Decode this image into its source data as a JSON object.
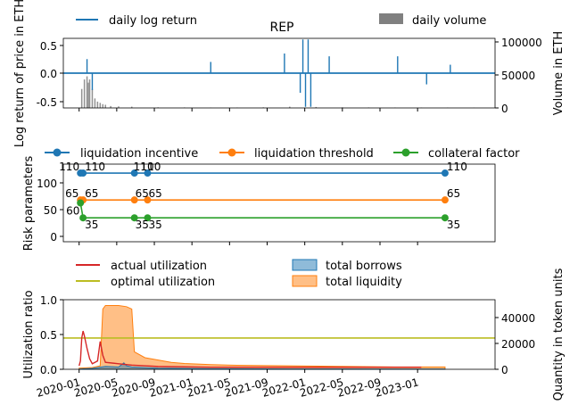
{
  "chart_data": [
    {
      "type": "line",
      "title": "REP",
      "ylabel": "Log return of price in ETH",
      "y2label": "Volume in ETH",
      "ylim": [
        -0.62,
        0.62
      ],
      "y2lim": [
        0,
        110000
      ],
      "yticks": [
        "0.5",
        "0.0",
        "-0.5"
      ],
      "y2ticks": [
        "100000",
        "50000",
        "0"
      ],
      "legend": [
        "daily log return",
        "daily volume"
      ],
      "colors": {
        "return": "#1f77b4",
        "volume": "#808080"
      },
      "volume_series": [
        [
          0.1,
          30000
        ],
        [
          0.2,
          45000
        ],
        [
          0.3,
          50000
        ],
        [
          0.35,
          40000
        ],
        [
          0.4,
          45000
        ],
        [
          0.5,
          30000
        ],
        [
          0.6,
          15000
        ],
        [
          0.7,
          10000
        ],
        [
          0.8,
          8000
        ],
        [
          0.9,
          6000
        ],
        [
          1.0,
          5000
        ],
        [
          1.2,
          3000
        ],
        [
          1.5,
          2500
        ],
        [
          2.0,
          2000
        ],
        [
          3.0,
          1000
        ],
        [
          4.0,
          800
        ],
        [
          5.0,
          500
        ],
        [
          6.0,
          600
        ],
        [
          7.0,
          1000
        ],
        [
          8.0,
          2000
        ],
        [
          9.0,
          1500
        ],
        [
          10.0,
          1000
        ],
        [
          11.0,
          800
        ],
        [
          12.0,
          700
        ],
        [
          13.0,
          600
        ],
        [
          14.0,
          500
        ],
        [
          15.0,
          400
        ]
      ],
      "return_spikes": [
        [
          0.3,
          0.25
        ],
        [
          0.5,
          -0.3
        ],
        [
          5.0,
          0.2
        ],
        [
          7.8,
          0.35
        ],
        [
          8.4,
          -0.35
        ],
        [
          8.5,
          0.6
        ],
        [
          8.6,
          -0.6
        ],
        [
          8.7,
          0.6
        ],
        [
          8.8,
          -0.6
        ],
        [
          9.5,
          0.3
        ],
        [
          12.1,
          0.3
        ],
        [
          13.2,
          -0.2
        ],
        [
          14.1,
          0.15
        ]
      ]
    },
    {
      "type": "line",
      "ylabel": "Risk parameters",
      "ylim": [
        -5,
        125
      ],
      "yticks": [
        "100",
        "50",
        "0"
      ],
      "legend": [
        "liquidation incentive",
        "liquidation threshold",
        "collateral factor"
      ],
      "colors": {
        "incentive": "#1f77b4",
        "threshold": "#ff7f0e",
        "collateral": "#2ca02c"
      },
      "x": [
        0.05,
        0.15,
        2.1,
        2.6,
        13.9
      ],
      "incentive": [
        110,
        110,
        110,
        110,
        110
      ],
      "threshold": [
        65,
        65,
        65,
        65,
        65
      ],
      "collateral": [
        60,
        35,
        35,
        35,
        35
      ],
      "point_labels": [
        {
          "text": "110",
          "x": 0.05,
          "y": 110,
          "dx": -24,
          "dy": -3
        },
        {
          "text": "110",
          "x": 0.15,
          "y": 110,
          "dx": 2,
          "dy": -3
        },
        {
          "text": "110",
          "x": 2.1,
          "y": 110,
          "dx": -1,
          "dy": -3
        },
        {
          "text": "110",
          "x": 2.6,
          "y": 110,
          "dx": -8,
          "dy": -3
        },
        {
          "text": "110",
          "x": 13.9,
          "y": 110,
          "dx": 2,
          "dy": -3
        },
        {
          "text": "65",
          "x": 0.05,
          "y": 65,
          "dx": -17,
          "dy": -3
        },
        {
          "text": "65",
          "x": 0.15,
          "y": 65,
          "dx": 2,
          "dy": -3
        },
        {
          "text": "65",
          "x": 2.1,
          "y": 65,
          "dx": 1,
          "dy": -3
        },
        {
          "text": "65",
          "x": 2.6,
          "y": 65,
          "dx": 1,
          "dy": -3
        },
        {
          "text": "65",
          "x": 13.9,
          "y": 65,
          "dx": 2,
          "dy": -3
        },
        {
          "text": "60",
          "x": 0.05,
          "y": 60,
          "dx": -16,
          "dy": 13
        },
        {
          "text": "35",
          "x": 0.15,
          "y": 35,
          "dx": 2,
          "dy": 12
        },
        {
          "text": "35",
          "x": 2.1,
          "y": 35,
          "dx": 1,
          "dy": 12
        },
        {
          "text": "35",
          "x": 2.6,
          "y": 35,
          "dx": 1,
          "dy": 12
        },
        {
          "text": "35",
          "x": 13.9,
          "y": 35,
          "dx": 2,
          "dy": 12
        }
      ]
    },
    {
      "type": "area",
      "ylabel": "Utilization ratio",
      "y2label": "Quantity in token units",
      "ylim": [
        0,
        1.0
      ],
      "y2lim": [
        0,
        60000
      ],
      "yticks": [
        "1.0",
        "0.5",
        "0.0"
      ],
      "y2ticks": [
        "40000",
        "20000",
        "0"
      ],
      "xlim": [
        -0.6,
        15.8
      ],
      "xticks": [
        "2020-01",
        "2020-05",
        "2020-09",
        "2021-01",
        "2021-05",
        "2021-09",
        "2022-01",
        "2022-05",
        "2022-09",
        "2023-01"
      ],
      "xtick_positions": [
        0,
        1,
        2,
        3,
        4,
        5,
        6,
        7,
        8,
        9
      ],
      "xtick_months": [
        0,
        4,
        8,
        12,
        16,
        20,
        24,
        28,
        32,
        36
      ],
      "legend": [
        "actual utilization",
        "optimal utilization",
        "total borrows",
        "total liquidity"
      ],
      "colors": {
        "actual": "#d62728",
        "optimal": "#bcbd22",
        "borrows": "#1f77b4",
        "liquidity": "#ff7f0e"
      },
      "optimal_utilization": 0.45,
      "actual_utilization": [
        [
          0.0,
          0.05
        ],
        [
          0.05,
          0.12
        ],
        [
          0.1,
          0.45
        ],
        [
          0.15,
          0.55
        ],
        [
          0.2,
          0.48
        ],
        [
          0.3,
          0.3
        ],
        [
          0.4,
          0.15
        ],
        [
          0.5,
          0.08
        ],
        [
          0.6,
          0.1
        ],
        [
          0.7,
          0.12
        ],
        [
          0.8,
          0.4
        ],
        [
          0.9,
          0.2
        ],
        [
          1.0,
          0.1
        ],
        [
          1.5,
          0.08
        ],
        [
          2.0,
          0.06
        ],
        [
          2.5,
          0.05
        ],
        [
          3.0,
          0.04
        ],
        [
          5.0,
          0.03
        ],
        [
          8.0,
          0.03
        ],
        [
          12.0,
          0.03
        ],
        [
          13.0,
          0.03
        ]
      ],
      "total_liquidity": [
        [
          0.0,
          1000
        ],
        [
          0.5,
          1500
        ],
        [
          0.8,
          3000
        ],
        [
          0.9,
          52000
        ],
        [
          1.0,
          55000
        ],
        [
          1.5,
          55000
        ],
        [
          1.8,
          54000
        ],
        [
          2.0,
          52000
        ],
        [
          2.1,
          15000
        ],
        [
          2.5,
          10000
        ],
        [
          3.0,
          8000
        ],
        [
          3.5,
          6000
        ],
        [
          4.0,
          5000
        ],
        [
          5.0,
          4000
        ],
        [
          6.0,
          3500
        ],
        [
          8.0,
          3000
        ],
        [
          10.0,
          2500
        ],
        [
          12.0,
          2000
        ],
        [
          13.0,
          2000
        ],
        [
          13.9,
          2000
        ]
      ],
      "total_borrows": [
        [
          0.0,
          200
        ],
        [
          0.5,
          800
        ],
        [
          1.0,
          2500
        ],
        [
          1.5,
          2000
        ],
        [
          1.7,
          5500
        ],
        [
          1.8,
          3000
        ],
        [
          2.0,
          2000
        ],
        [
          3.0,
          1000
        ],
        [
          5.0,
          500
        ],
        [
          8.0,
          300
        ],
        [
          13.0,
          200
        ],
        [
          13.9,
          200
        ]
      ]
    }
  ]
}
